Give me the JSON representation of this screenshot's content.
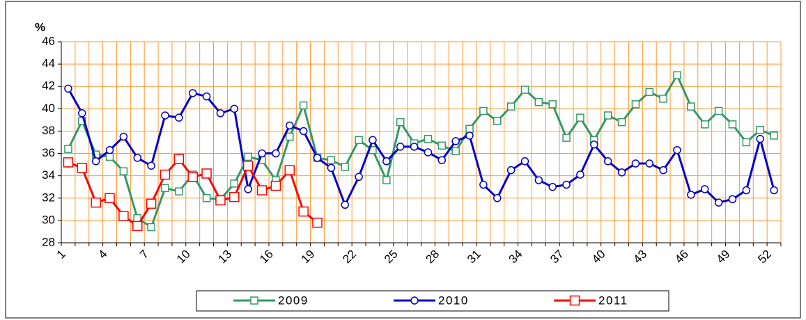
{
  "chart_data": {
    "type": "line",
    "y_label": "%",
    "categories": [
      1,
      null,
      null,
      4,
      null,
      null,
      7,
      null,
      null,
      10,
      null,
      null,
      13,
      null,
      null,
      16,
      null,
      null,
      19,
      null,
      null,
      22,
      null,
      null,
      25,
      null,
      null,
      28,
      null,
      null,
      31,
      null,
      null,
      34,
      null,
      null,
      37,
      null,
      null,
      40,
      null,
      null,
      43,
      null,
      null,
      46,
      null,
      null,
      49,
      null,
      null,
      52
    ],
    "ylim": [
      28,
      46
    ],
    "yticks": [
      28,
      30,
      32,
      34,
      36,
      38,
      40,
      42,
      44,
      46
    ],
    "grid": true,
    "legend": "bottom",
    "series": [
      {
        "name": "2009",
        "color": "#339966",
        "marker": "square",
        "values": [
          36.4,
          38.9,
          35.9,
          35.7,
          34.4,
          30.2,
          29.4,
          32.9,
          32.6,
          34.1,
          32.0,
          31.9,
          33.3,
          35.7,
          35.4,
          33.6,
          37.5,
          40.3,
          35.6,
          35.4,
          34.8,
          37.2,
          36.3,
          33.6,
          38.8,
          36.9,
          37.3,
          36.7,
          36.2,
          38.2,
          39.8,
          38.9,
          40.2,
          41.7,
          40.6,
          40.4,
          37.4,
          39.2,
          37.2,
          39.4,
          38.8,
          40.4,
          41.5,
          40.9,
          43.0,
          40.2,
          38.6,
          39.8,
          38.6,
          37.0,
          38.1,
          37.6
        ]
      },
      {
        "name": "2010",
        "color": "#0000cc",
        "marker": "circle",
        "values": [
          41.8,
          39.6,
          35.3,
          36.3,
          37.5,
          35.6,
          34.9,
          39.4,
          39.2,
          41.4,
          41.1,
          39.6,
          40.0,
          32.8,
          36.0,
          36.0,
          38.5,
          38.0,
          35.6,
          34.7,
          31.4,
          33.9,
          37.2,
          35.3,
          36.6,
          36.6,
          36.1,
          35.4,
          37.1,
          37.6,
          33.2,
          32.0,
          34.5,
          35.3,
          33.6,
          33.0,
          33.2,
          34.1,
          36.8,
          35.3,
          34.3,
          35.1,
          35.1,
          34.5,
          36.3,
          32.3,
          32.8,
          31.6,
          31.9,
          32.7,
          37.3,
          32.7
        ]
      },
      {
        "name": "2011",
        "color": "#ff0000",
        "marker": "bigsquare",
        "values": [
          35.2,
          34.7,
          31.6,
          32.0,
          30.4,
          29.5,
          31.5,
          34.1,
          35.5,
          33.9,
          34.2,
          31.8,
          32.1,
          34.9,
          32.7,
          33.1,
          34.5,
          30.8,
          29.8,
          null,
          null,
          null,
          null,
          null,
          null,
          null,
          null,
          null,
          null,
          null,
          null,
          null,
          null,
          null,
          null,
          null,
          null,
          null,
          null,
          null,
          null,
          null,
          null,
          null,
          null,
          null,
          null,
          null,
          null,
          null,
          null,
          null
        ]
      }
    ]
  }
}
